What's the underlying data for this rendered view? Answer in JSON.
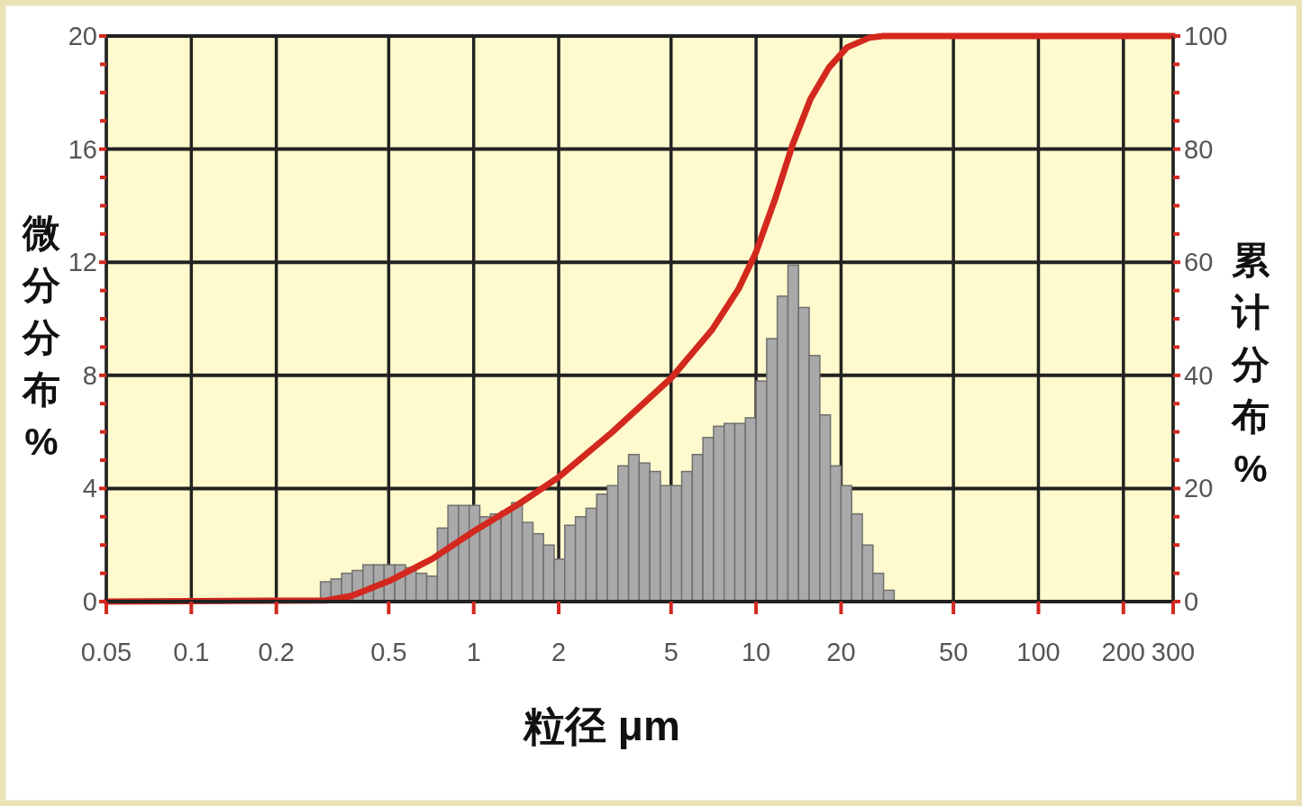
{
  "chart_data": {
    "type": "histogram",
    "xlabel": "粒径 μm",
    "ylabel": "微分分布%",
    "y2label": "累计分布%",
    "log": "x",
    "grid": true,
    "xlim": [
      0.05,
      300
    ],
    "ylim": [
      0,
      20
    ],
    "y2lim": [
      0,
      100
    ],
    "xticks": [
      0.05,
      0.1,
      0.2,
      0.5,
      1,
      2,
      5,
      10,
      20,
      50,
      100,
      200,
      300
    ],
    "yticks": [
      0,
      4,
      8,
      12,
      16,
      20
    ],
    "y2ticks": [
      0,
      20,
      40,
      60,
      80,
      100
    ],
    "series": [
      {
        "type": "histogram",
        "color": "#a9a9a9",
        "bins": [
          0.2866,
          0.3125,
          0.3408,
          0.3716,
          0.4053,
          0.4419,
          0.4819,
          0.5256,
          0.5731,
          0.625,
          0.6816,
          0.7433,
          0.8105,
          0.8839,
          0.9639,
          1.0511,
          1.1463,
          1.25,
          1.3631,
          1.4865,
          1.621,
          1.7678,
          1.9278,
          2.1022,
          2.2925,
          2.5,
          2.7263,
          2.973,
          3.2421,
          3.5355,
          3.8555,
          4.2045,
          4.585,
          5,
          5.4525,
          5.946,
          6.4842,
          7.0711,
          7.7111,
          8.409,
          9.17,
          10,
          10.905,
          11.892,
          12.968,
          14.142,
          15.422,
          16.818,
          18.34,
          20,
          21.81,
          23.784,
          25.937,
          28.284,
          30.844
        ],
        "values": [
          0.7,
          0.8,
          1.0,
          1.1,
          1.3,
          1.3,
          1.3,
          1.3,
          1.2,
          1.0,
          0.9,
          2.6,
          3.4,
          3.4,
          3.4,
          3.0,
          3.1,
          3.2,
          3.5,
          2.8,
          2.4,
          2.0,
          1.5,
          2.7,
          3.0,
          3.3,
          3.8,
          4.1,
          4.8,
          5.2,
          4.9,
          4.6,
          4.1,
          4.1,
          4.6,
          5.2,
          5.8,
          6.2,
          6.3,
          6.3,
          6.5,
          7.8,
          9.3,
          10.8,
          11.9,
          10.4,
          8.7,
          6.6,
          4.8,
          4.1,
          3.1,
          2.0,
          1.0,
          0.4
        ]
      },
      {
        "type": "line",
        "axis": "y2",
        "color": "#d3281e",
        "x": [
          0.05,
          0.3,
          0.369,
          0.505,
          0.715,
          1,
          1.44,
          2,
          3.1,
          5,
          6.97,
          8.7,
          10,
          11.7,
          13.5,
          15.6,
          18.1,
          21,
          25.2,
          28.2,
          300
        ],
        "values": [
          0,
          0.2,
          1,
          3.7,
          7.6,
          12.4,
          17.2,
          22,
          30,
          39.5,
          48,
          55.4,
          61.8,
          71.3,
          80.9,
          88.9,
          94.4,
          98,
          99.7,
          100,
          100
        ]
      }
    ]
  }
}
